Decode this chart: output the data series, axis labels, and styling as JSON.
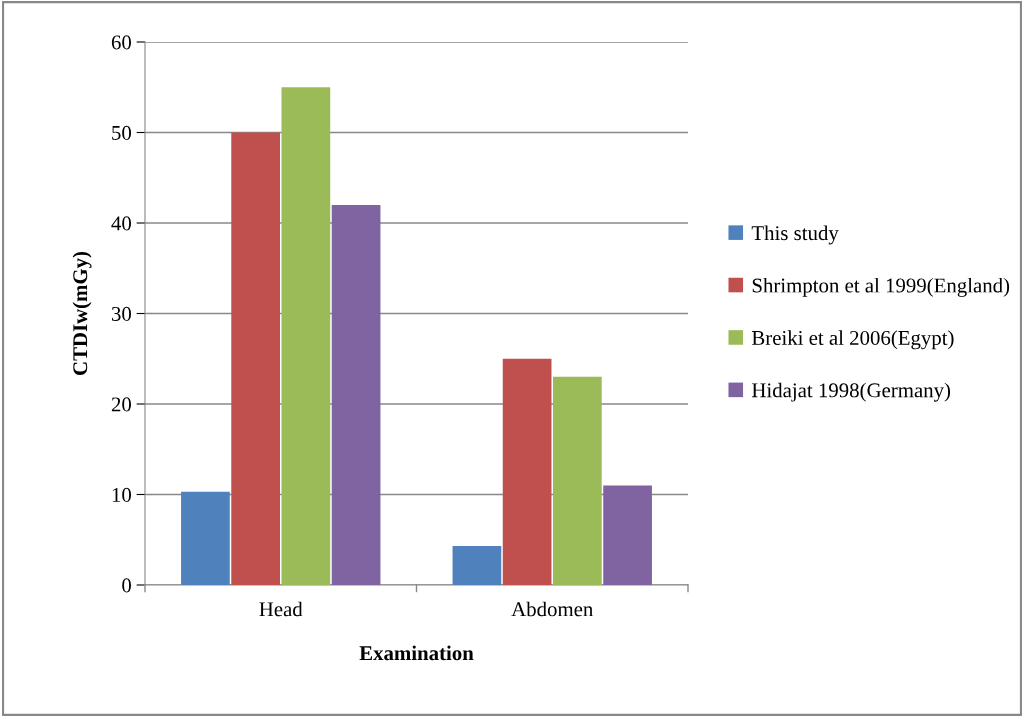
{
  "chart_data": {
    "type": "bar",
    "xlabel": "Examination",
    "ylabel": "CTDIw(mGy)",
    "categories": [
      "Head",
      "Abdomen"
    ],
    "series": [
      {
        "name": "This study",
        "color": "#4f81bd",
        "values": [
          10.3,
          4.3
        ]
      },
      {
        "name": "Shrimpton et al 1999(England)",
        "color": "#c0504d",
        "values": [
          50,
          25
        ]
      },
      {
        "name": "Breiki et al 2006(Egypt)",
        "color": "#9bbb59",
        "values": [
          55,
          23
        ]
      },
      {
        "name": "Hidajat 1998(Germany)",
        "color": "#8064a2",
        "values": [
          42,
          11
        ]
      }
    ],
    "ylim": [
      0,
      60
    ],
    "yticks": [
      0,
      10,
      20,
      30,
      40,
      50,
      60
    ],
    "grid": "y",
    "legend": "right"
  }
}
